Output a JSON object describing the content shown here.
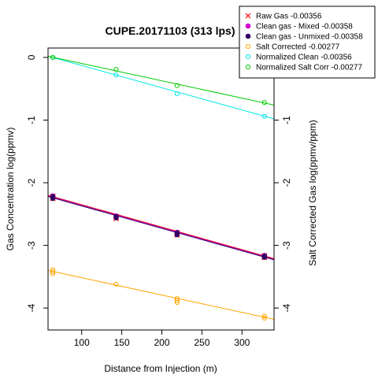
{
  "chart_data": {
    "type": "scatter",
    "title": "CUPE.20171103 (313 lps)",
    "xlabel": "Distance from Injection (m)",
    "ylabel": "Gas Concentration log(ppmv)",
    "ylabel_right": "Salt Corrected Gas log(ppmv/ppm)",
    "xlim": [
      58,
      340
    ],
    "ylim": [
      -4.35,
      0.15
    ],
    "x_ticks": [
      100,
      150,
      200,
      250,
      300
    ],
    "y_ticks": [
      0,
      -1,
      -2,
      -3,
      -4
    ],
    "legend_position": "top-right",
    "series": [
      {
        "name": "Raw Gas -0.00356",
        "color": "#ff0000",
        "marker": "x",
        "points": [
          [
            64,
            -2.22
          ],
          [
            64,
            -2.25
          ],
          [
            143,
            -2.54
          ],
          [
            143,
            -2.57
          ],
          [
            219,
            -2.8
          ],
          [
            219,
            -2.83
          ],
          [
            328,
            -3.17
          ],
          [
            328,
            -3.19
          ]
        ],
        "fit": [
          [
            58,
            -2.2
          ],
          [
            340,
            -3.21
          ]
        ]
      },
      {
        "name": "Clean gas - Mixed -0.00358",
        "color": "#cc00cc",
        "marker": "filled",
        "points": [
          [
            64,
            -2.21
          ],
          [
            64,
            -2.24
          ],
          [
            143,
            -2.53
          ],
          [
            143,
            -2.55
          ],
          [
            219,
            -2.79
          ],
          [
            219,
            -2.82
          ],
          [
            328,
            -3.16
          ],
          [
            328,
            -3.18
          ]
        ],
        "fit": [
          [
            58,
            -2.21
          ],
          [
            340,
            -3.22
          ]
        ]
      },
      {
        "name": "Clean gas - Unmixed -0.00358",
        "color": "#330066",
        "marker": "filled",
        "points": [
          [
            64,
            -2.22
          ],
          [
            64,
            -2.25
          ],
          [
            143,
            -2.54
          ],
          [
            143,
            -2.56
          ],
          [
            219,
            -2.8
          ],
          [
            219,
            -2.83
          ],
          [
            328,
            -3.17
          ],
          [
            328,
            -3.19
          ]
        ],
        "fit": [
          [
            58,
            -2.22
          ],
          [
            340,
            -3.23
          ]
        ]
      },
      {
        "name": "Salt Corrected -0.00277",
        "color": "#ffa500",
        "marker": "open",
        "points": [
          [
            64,
            -3.39
          ],
          [
            64,
            -3.42
          ],
          [
            64,
            -3.45
          ],
          [
            143,
            -3.62
          ],
          [
            219,
            -3.85
          ],
          [
            219,
            -3.88
          ],
          [
            219,
            -3.91
          ],
          [
            328,
            -4.13
          ],
          [
            328,
            -4.16
          ]
        ],
        "fit": [
          [
            58,
            -3.4
          ],
          [
            340,
            -4.18
          ]
        ]
      },
      {
        "name": "Normalized Clean -0.00356",
        "color": "#00e5e5",
        "marker": "open",
        "points": [
          [
            64,
            0.0
          ],
          [
            143,
            -0.28
          ],
          [
            219,
            -0.58
          ],
          [
            328,
            -0.94
          ]
        ],
        "fit": [
          [
            58,
            0.02
          ],
          [
            340,
            -0.98
          ]
        ]
      },
      {
        "name": "Normalized Salt Corr -0.00277",
        "color": "#00cc00",
        "marker": "open",
        "points": [
          [
            64,
            0.0
          ],
          [
            143,
            -0.19
          ],
          [
            219,
            -0.45
          ],
          [
            328,
            -0.72
          ]
        ],
        "fit": [
          [
            58,
            0.02
          ],
          [
            340,
            -0.76
          ]
        ]
      }
    ]
  }
}
